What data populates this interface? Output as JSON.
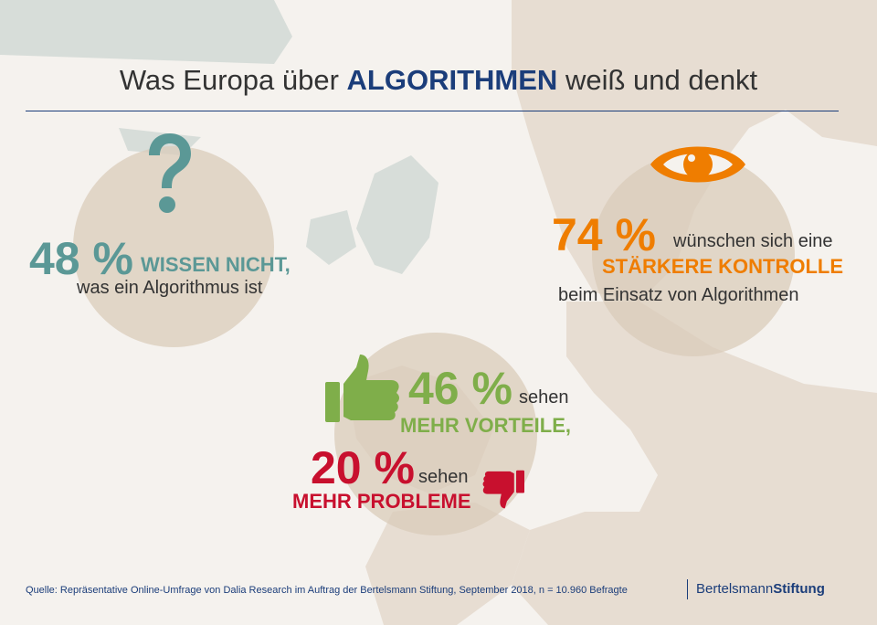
{
  "title": {
    "prefix": "Was Europa über",
    "emphasis": "ALGORITHMEN",
    "suffix": "weiß und denkt"
  },
  "stats": {
    "unknown": {
      "value": "48 %",
      "caps": "WISSEN NICHT,",
      "text": "was ein Algorithmus ist",
      "icon": "question-mark-icon"
    },
    "control": {
      "value": "74 %",
      "text1": "wünschen sich eine",
      "caps": "STÄRKERE KONTROLLE",
      "text2": "beim Einsatz von Algorithmen",
      "icon": "eye-icon"
    },
    "advantages": {
      "value": "46 %",
      "text": "sehen",
      "caps": "MEHR VORTEILE,",
      "icon": "thumbs-up-icon"
    },
    "problems": {
      "value": "20 %",
      "text": "sehen",
      "caps": "MEHR PROBLEME",
      "icon": "thumbs-down-icon"
    }
  },
  "colors": {
    "teal": "#5b9896",
    "orange": "#ef7d00",
    "green": "#7fae4a",
    "red": "#c8102e",
    "navy": "#1b3d7a"
  },
  "footer": {
    "source": "Quelle: Repräsentative Online-Umfrage von Dalia Research im Auftrag der Bertelsmann Stiftung, September 2018, n = 10.960 Befragte",
    "logo_part1": "Bertelsmann",
    "logo_part2": "Stiftung"
  }
}
